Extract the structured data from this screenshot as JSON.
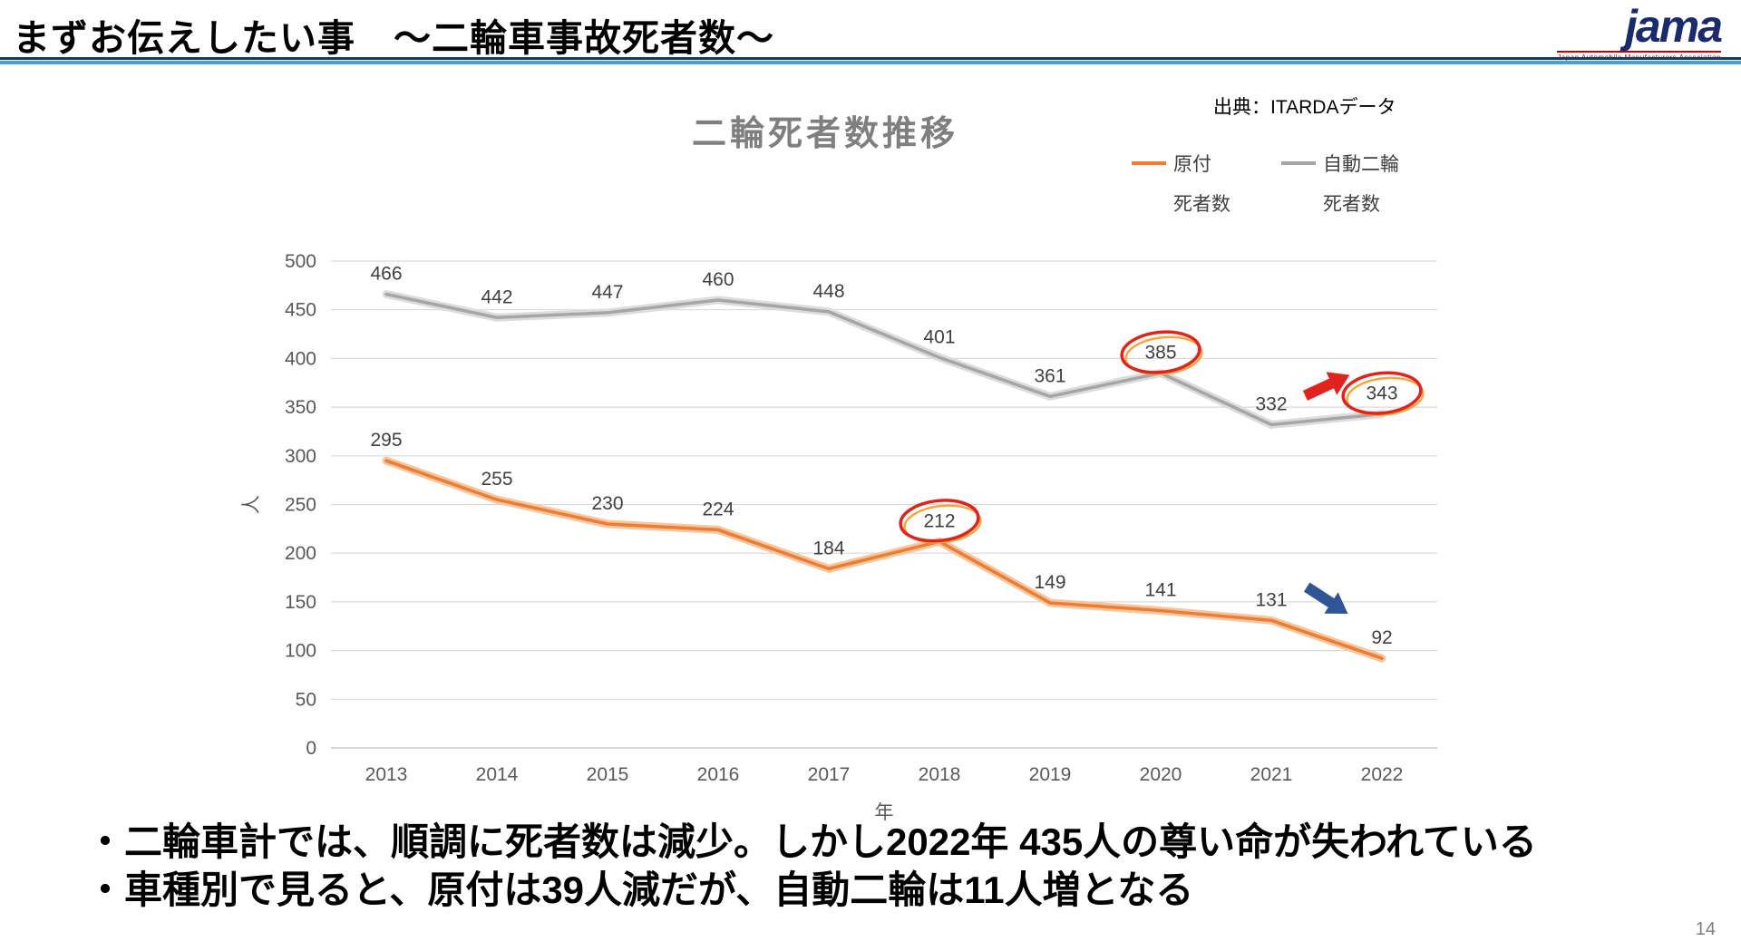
{
  "header": {
    "title": "まずお伝えしたい事　～二輪車事故死者数～",
    "logo_text": "jama",
    "logo_tagline": "Japan Automobile Manufacturers Association"
  },
  "chart_data": {
    "type": "line",
    "title": "二輪死者数推移",
    "source": "出典：ITARDAデータ",
    "xlabel": "年",
    "ylabel": "人",
    "ylim": [
      0,
      500
    ],
    "ytick_step": 50,
    "grid": true,
    "legend_position": "top-right",
    "categories": [
      2013,
      2014,
      2015,
      2016,
      2017,
      2018,
      2019,
      2020,
      2021,
      2022
    ],
    "series": [
      {
        "name": "原付",
        "sub": "死者数",
        "color": "#ED7D31",
        "halo": "#F6C6A0",
        "values": [
          295,
          255,
          230,
          224,
          184,
          212,
          149,
          141,
          131,
          92
        ]
      },
      {
        "name": "自動二輪",
        "sub": "死者数",
        "color": "#A6A6A6",
        "halo": "#DCDCDC",
        "values": [
          466,
          442,
          447,
          460,
          448,
          401,
          361,
          385,
          332,
          343
        ]
      }
    ],
    "annotations": {
      "circled_labels": [
        {
          "series": "自動二輪",
          "year": 2020,
          "value": 385
        },
        {
          "series": "自動二輪",
          "year": 2022,
          "value": 343
        },
        {
          "series": "原付",
          "year": 2018,
          "value": 212
        }
      ],
      "arrows": [
        {
          "name": "red-arrow",
          "color": "#E0231C",
          "between_years": [
            2021,
            2022
          ],
          "at_value": 372,
          "angle_deg": -25
        },
        {
          "name": "blue-arrow",
          "color": "#2F5597",
          "between_years": [
            2021,
            2022
          ],
          "at_value": 152,
          "angle_deg": 33
        }
      ]
    }
  },
  "bullets": [
    "・二輪車計では、順調に死者数は減少。しかし2022年 435人の尊い命が失われている",
    "・車種別で見ると、原付は39人減だが、自動二輪は11人増となる"
  ],
  "footer": {
    "page_number": "14"
  }
}
